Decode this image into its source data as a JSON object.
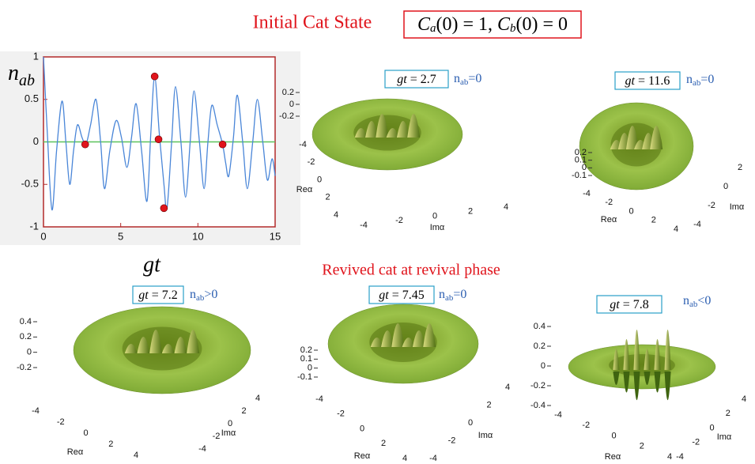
{
  "title": "Initial Cat  State",
  "condition": [
    "C",
    "a",
    "(0) = 1, ",
    "C",
    "b",
    "(0) = 0"
  ],
  "subtitle": "Revived cat at revival phase",
  "chart_data": {
    "type": "line",
    "y_label": [
      "n",
      "ab"
    ],
    "x_label": "gt",
    "xlim": [
      0,
      15
    ],
    "ylim": [
      -1,
      1
    ],
    "xticks": [
      0,
      5,
      10,
      15
    ],
    "yticks": [
      -1,
      -0.5,
      0,
      0.5,
      1
    ],
    "series": [
      {
        "type": "line",
        "color": "#4a86d8",
        "x": [
          0,
          0.25,
          0.55,
          0.85,
          1.2,
          1.45,
          1.7,
          1.95,
          2.2,
          2.5,
          2.75,
          3.05,
          3.4,
          3.7,
          3.95,
          4.3,
          4.7,
          5.05,
          5.4,
          5.7,
          6.0,
          6.35,
          6.7,
          6.95,
          7.2,
          7.5,
          7.8,
          8.0,
          8.3,
          8.55,
          8.9,
          9.2,
          9.5,
          9.75,
          10.1,
          10.4,
          10.65,
          10.9,
          11.25,
          11.6,
          11.8,
          12.0,
          12.3,
          12.55,
          12.9,
          13.2,
          13.55,
          13.85,
          14.2,
          14.5,
          14.8,
          15
        ],
        "values": [
          1,
          0.1,
          -0.8,
          -0.1,
          0.48,
          0,
          -0.5,
          -0.1,
          0.2,
          0.05,
          -0.03,
          0.2,
          0.5,
          0,
          -0.55,
          -0.1,
          0.25,
          0.05,
          -0.3,
          0.05,
          0.45,
          -0.1,
          -0.7,
          0.1,
          0.77,
          0.1,
          -0.5,
          -0.78,
          0,
          0.65,
          0,
          -0.65,
          0,
          0.6,
          0,
          -0.55,
          0,
          0.43,
          0.2,
          -0.03,
          -0.25,
          -0.4,
          0.05,
          0.55,
          0,
          -0.55,
          0,
          0.5,
          0,
          -0.45,
          -0.2,
          -0.4
        ]
      },
      {
        "type": "scatter",
        "color": "#e0141c",
        "x": [
          2.7,
          7.2,
          7.45,
          7.8,
          11.6
        ],
        "values": [
          -0.03,
          0.77,
          0.03,
          -0.78,
          -0.03
        ]
      }
    ]
  },
  "panels": [
    {
      "label": [
        "gt",
        " = 2.7"
      ],
      "note": [
        "n",
        "ab",
        "=0"
      ],
      "zticks": [
        0.2,
        0,
        -0.2
      ],
      "reticks": [
        -4,
        -2,
        0,
        2,
        4
      ],
      "imticks": [
        -4,
        -2,
        0,
        2,
        4
      ],
      "re_label": "Reα",
      "im_label": "Imα"
    },
    {
      "label": [
        "gt",
        " = 11.6"
      ],
      "note": [
        "n",
        "ab",
        "=0"
      ],
      "zticks": [
        0.2,
        0.1,
        0,
        -0.1
      ],
      "reticks": [
        -4,
        -2,
        0,
        2,
        4
      ],
      "imticks": [
        -4,
        -2,
        0,
        2
      ],
      "re_label": "Reα",
      "im_label": "Imα"
    },
    {
      "label": [
        "gt",
        " = 7.2"
      ],
      "note": [
        "n",
        "ab",
        ">0"
      ],
      "zticks": [
        0.4,
        0.2,
        0,
        -0.2
      ],
      "reticks": [
        -4,
        -2,
        0,
        2,
        4
      ],
      "imticks": [
        -4,
        -2,
        0,
        2,
        4
      ],
      "re_label": "Reα",
      "im_label": "Imα"
    },
    {
      "label": [
        "gt",
        " = 7.45"
      ],
      "note": [
        "n",
        "ab",
        "=0"
      ],
      "zticks": [
        0.2,
        0.1,
        0,
        -0.1
      ],
      "reticks": [
        -4,
        -2,
        0,
        2,
        4
      ],
      "imticks": [
        -4,
        -2,
        0,
        2,
        4
      ],
      "re_label": "Reα",
      "im_label": "Imα"
    },
    {
      "label": [
        "gt",
        " = 7.8"
      ],
      "note": [
        "n",
        "ab",
        "<0"
      ],
      "zticks": [
        0.4,
        0.2,
        0,
        -0.2,
        -0.4
      ],
      "reticks": [
        -4,
        -2,
        0,
        2,
        4
      ],
      "imticks": [
        -4,
        -2,
        0,
        2,
        4
      ],
      "re_label": "Reα",
      "im_label": "Imα"
    }
  ]
}
